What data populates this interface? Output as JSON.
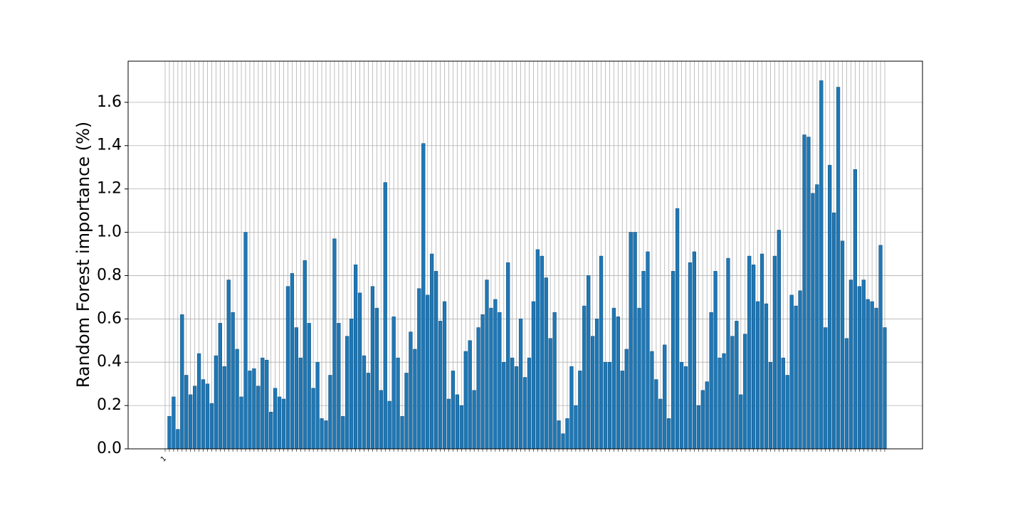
{
  "chart_data": {
    "type": "bar",
    "y_label": "Random Forest importance (%)",
    "categories": [
      "1",
      null,
      null,
      null,
      null,
      null,
      null,
      null,
      null,
      null,
      null,
      null,
      null,
      null,
      null,
      null,
      null,
      null,
      null,
      null,
      null,
      null,
      null,
      null,
      null,
      null,
      null,
      null,
      null,
      null,
      null,
      null,
      null,
      null,
      null,
      null,
      null,
      null,
      null,
      null,
      null,
      null,
      null,
      null,
      null,
      null,
      null,
      null,
      null,
      null,
      null,
      null,
      null,
      null,
      null,
      null,
      null,
      null,
      null,
      null,
      null,
      null,
      null,
      null,
      null,
      null,
      null,
      null,
      null,
      null,
      null,
      null,
      null,
      null,
      null,
      null,
      null,
      null,
      null,
      null,
      null,
      null,
      null,
      null,
      null,
      null,
      null,
      null,
      null,
      null,
      null,
      null,
      null,
      null,
      null,
      null,
      null,
      null,
      null,
      null,
      null,
      null,
      null,
      null,
      null,
      null,
      null,
      null,
      null,
      null,
      null,
      null,
      null,
      null,
      null,
      null,
      null,
      null,
      null,
      null,
      null,
      null,
      null,
      null,
      null,
      null,
      null,
      null,
      null,
      null,
      null,
      null,
      null,
      null,
      null,
      null,
      null,
      null,
      null,
      null,
      null,
      null,
      null,
      null,
      null,
      null,
      null,
      null,
      null,
      null,
      null,
      null,
      null,
      null,
      null,
      null,
      null,
      null,
      null,
      null,
      null,
      null,
      null,
      null,
      null,
      null,
      null,
      null,
      null,
      null,
      null
    ],
    "values": [
      0,
      0.15,
      0.24,
      0.09,
      0.62,
      0.34,
      0.25,
      0.29,
      0.44,
      0.32,
      0.3,
      0.21,
      0.43,
      0.58,
      0.38,
      0.78,
      0.63,
      0.46,
      0.24,
      1.0,
      0.36,
      0.37,
      0.29,
      0.42,
      0.41,
      0.17,
      0.28,
      0.24,
      0.23,
      0.75,
      0.81,
      0.56,
      0.42,
      0.87,
      0.58,
      0.28,
      0.4,
      0.14,
      0.13,
      0.34,
      0.97,
      0.58,
      0.15,
      0.52,
      0.6,
      0.85,
      0.72,
      0.43,
      0.35,
      0.75,
      0.65,
      0.27,
      1.23,
      0.22,
      0.61,
      0.42,
      0.15,
      0.35,
      0.54,
      0.46,
      0.74,
      1.41,
      0.71,
      0.9,
      0.82,
      0.59,
      0.68,
      0.23,
      0.36,
      0.25,
      0.2,
      0.45,
      0.5,
      0.27,
      0.56,
      0.62,
      0.78,
      0.65,
      0.69,
      0.63,
      0.4,
      0.86,
      0.42,
      0.38,
      0.6,
      0.33,
      0.42,
      0.68,
      0.92,
      0.89,
      0.79,
      0.51,
      0.63,
      0.13,
      0.07,
      0.14,
      0.38,
      0.2,
      0.36,
      0.66,
      0.8,
      0.52,
      0.6,
      0.89,
      0.4,
      0.4,
      0.65,
      0.61,
      0.36,
      0.46,
      1.0,
      1.0,
      0.65,
      0.82,
      0.91,
      0.45,
      0.32,
      0.23,
      0.48,
      0.14,
      0.82,
      1.11,
      0.4,
      0.38,
      0.86,
      0.91,
      0.2,
      0.27,
      0.31,
      0.63,
      0.82,
      0.42,
      0.44,
      0.88,
      0.52,
      0.59,
      0.25,
      0.53,
      0.89,
      0.85,
      0.68,
      0.9,
      0.67,
      0.4,
      0.89,
      1.01,
      0.42,
      0.34,
      0.71,
      0.66,
      0.73,
      1.45,
      1.44,
      1.18,
      1.22,
      1.7,
      0.56,
      1.31,
      1.09,
      1.67,
      0.96,
      0.51,
      0.78,
      1.29,
      0.75,
      0.78,
      0.69,
      0.68,
      0.65,
      0.94,
      0.56
    ],
    "color": "#1f77b4",
    "ylim": [
      0,
      1.79
    ],
    "yticks": [
      {
        "value": 0,
        "label": "0.0"
      },
      {
        "value": 0.2,
        "label": "0.2"
      },
      {
        "value": 0.4,
        "label": "0.4"
      },
      {
        "value": 0.6,
        "label": "0.6"
      },
      {
        "value": 0.8,
        "label": "0.8"
      },
      {
        "value": 1.0,
        "label": "1.0"
      },
      {
        "value": 1.2,
        "label": "1.2"
      },
      {
        "value": 1.4,
        "label": "1.4"
      },
      {
        "value": 1.6,
        "label": "1.6"
      }
    ],
    "grid": true
  }
}
